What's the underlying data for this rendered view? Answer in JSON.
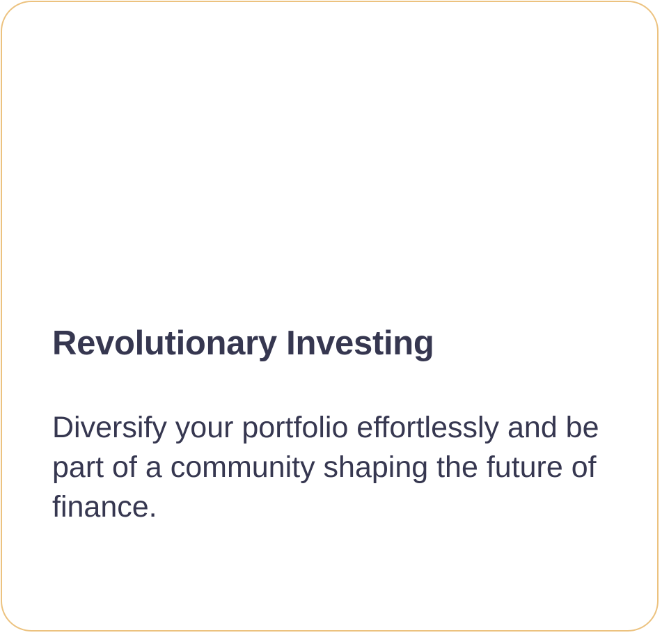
{
  "card": {
    "title": "Revolutionary Investing",
    "description": "Diversify your portfolio effortlessly and be part of a community shaping the future of finance.",
    "border_color": "#ecc27f",
    "text_color": "#363750"
  }
}
